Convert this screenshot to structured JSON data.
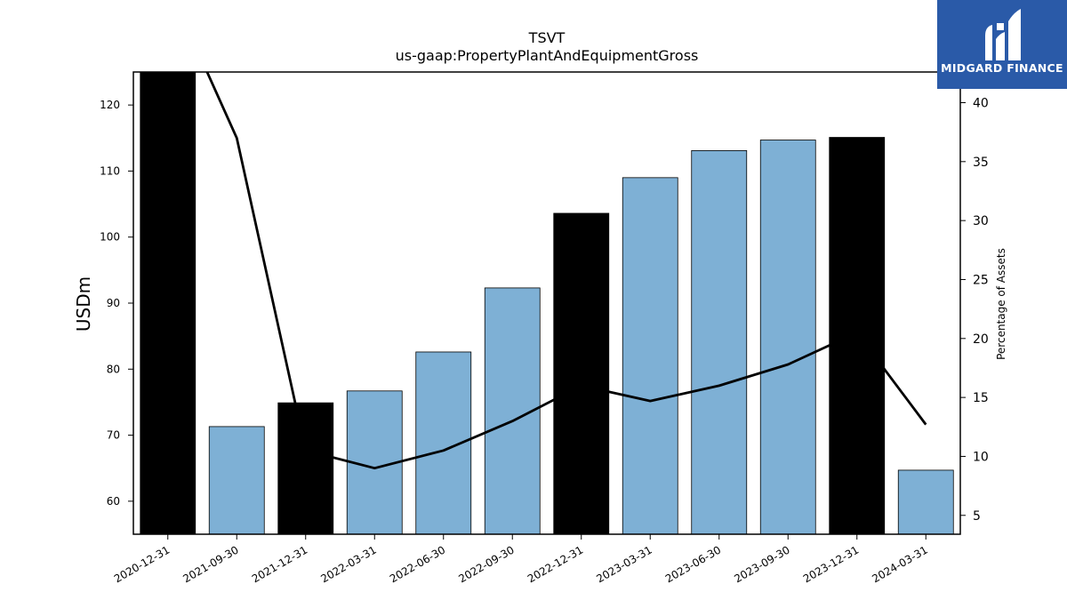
{
  "chart_data": {
    "type": "bar",
    "title": "TSVT",
    "subtitle": "us-gaap:PropertyPlantAndEquipmentGross",
    "ylabel": "USDm",
    "ylabel_right": "Percentage of Assets",
    "categories": [
      "2020-12-31",
      "2021-09-30",
      "2021-12-31",
      "2022-03-31",
      "2022-06-30",
      "2022-09-30",
      "2022-12-31",
      "2023-03-31",
      "2023-06-30",
      "2023-09-30",
      "2023-12-31",
      "2024-03-31"
    ],
    "series": [
      {
        "axis": "left",
        "kind": "bar",
        "values": [
          125.5,
          71.3,
          74.9,
          76.7,
          82.6,
          92.3,
          103.6,
          109.0,
          113.1,
          114.7,
          115.1,
          64.7
        ],
        "highlight": [
          true,
          false,
          true,
          false,
          false,
          false,
          true,
          false,
          false,
          false,
          true,
          false
        ]
      },
      {
        "axis": "right",
        "kind": "line",
        "values": [
          50.0,
          37.0,
          10.5,
          9.0,
          10.5,
          13.0,
          16.0,
          14.7,
          16.0,
          17.8,
          20.5,
          12.7
        ]
      }
    ],
    "ylim": [
      55,
      125
    ],
    "y2lim": [
      3.4,
      42.6
    ],
    "yticks": [
      60,
      70,
      80,
      90,
      100,
      110,
      120
    ],
    "y2ticks": [
      5,
      10,
      15,
      20,
      25,
      30,
      35,
      40
    ],
    "colors": {
      "bar": "#7eb0d5",
      "highlight": "#000000",
      "line": "#000000"
    }
  },
  "logo": {
    "text": "MIDGARD FINANCE",
    "bg": "#2a5aa8"
  }
}
